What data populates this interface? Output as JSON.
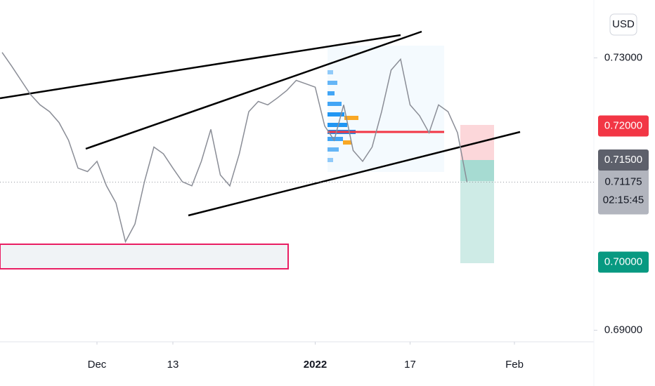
{
  "chart_data": {
    "type": "line",
    "color": "#8a8d96",
    "x": [
      -10,
      -9,
      -8,
      -7,
      -6,
      -5,
      -4,
      -3,
      -2,
      -1,
      0,
      1,
      2,
      3,
      4,
      5,
      6,
      7,
      8,
      9,
      10,
      11,
      12,
      13,
      14,
      15,
      16,
      17,
      18,
      19,
      20,
      21,
      22,
      23,
      24,
      25,
      26,
      27,
      28,
      29,
      30,
      31,
      32,
      33,
      34,
      35,
      36,
      37,
      38,
      39
    ],
    "values": [
      0.7308,
      0.7288,
      0.7267,
      0.7246,
      0.7231,
      0.7221,
      0.7205,
      0.7179,
      0.7138,
      0.7133,
      0.7148,
      0.7112,
      0.7087,
      0.703,
      0.7056,
      0.7118,
      0.7169,
      0.7159,
      0.7138,
      0.7118,
      0.7112,
      0.7148,
      0.7195,
      0.7128,
      0.7112,
      0.7159,
      0.7221,
      0.7236,
      0.7231,
      0.7241,
      0.7252,
      0.7267,
      0.7262,
      0.7257,
      0.72,
      0.7179,
      0.7231,
      0.7164,
      0.7148,
      0.7169,
      0.7221,
      0.7282,
      0.7298,
      0.7231,
      0.7215,
      0.719,
      0.7231,
      0.7221,
      0.719,
      0.71175
    ],
    "xlim": [
      -10.22,
      52.37
    ],
    "xticks": [
      {
        "value": 0,
        "label": "Dec"
      },
      {
        "value": 8,
        "label": "13"
      },
      {
        "value": 23,
        "label": "2022"
      },
      {
        "value": 33,
        "label": "17"
      },
      {
        "value": 44,
        "label": "Feb"
      }
    ],
    "ylim": [
      0.6883,
      0.7385
    ],
    "yticks": [
      {
        "value": 0.73,
        "label": "0.73000"
      },
      {
        "value": 0.69,
        "label": "0.69000"
      }
    ],
    "currency": "USD",
    "price_labels": [
      {
        "value": 0.72,
        "label": "0.72000",
        "color": "#f23645"
      },
      {
        "value": 0.715,
        "label": "0.71500",
        "color": "#5d606b"
      },
      {
        "value": 0.7,
        "label": "0.70000",
        "color": "#089981"
      }
    ],
    "last_price": {
      "value": 0.71175,
      "label": "0.71175",
      "countdown": "02:15:45"
    }
  }
}
